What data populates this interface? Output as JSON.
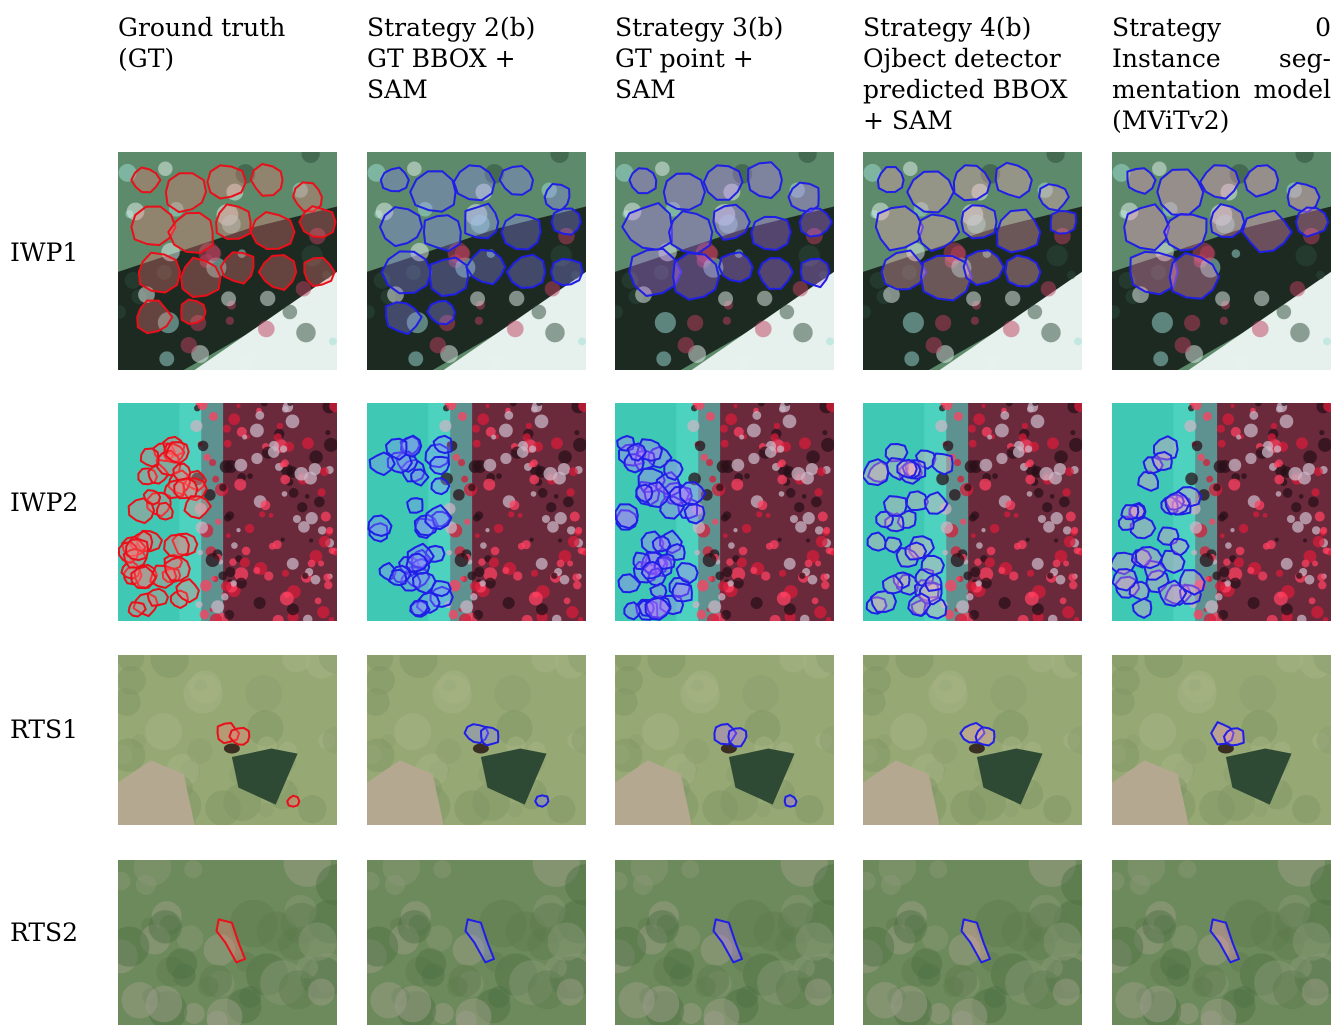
{
  "columns": [
    {
      "id": "gt",
      "lines": [
        "Ground truth",
        "(GT)"
      ],
      "outline": "#e8101a",
      "fill": "rgba(255,120,120,0.32)"
    },
    {
      "id": "s2b",
      "lines": [
        "Strategy 2(b)",
        "GT BBOX +",
        "SAM"
      ],
      "outline": "#1f1fe6",
      "fill": "rgba(150,140,255,0.32)"
    },
    {
      "id": "s3b",
      "lines": [
        "Strategy 3(b)",
        "GT point +",
        "SAM"
      ],
      "outline": "#1f1fe6",
      "fill": "rgba(190,120,255,0.35)"
    },
    {
      "id": "s4b",
      "lines": [
        "Strategy 4(b)",
        "Ojbect detector",
        "predicted BBOX",
        "+ SAM"
      ],
      "outline": "#1f1fe6",
      "fill": "rgba(255,170,190,0.35)"
    },
    {
      "id": "s0",
      "lines": [
        [
          "Strategy",
          "0"
        ],
        [
          "Instance",
          "seg-"
        ],
        [
          "mentation",
          "model"
        ],
        "(MViTv2)"
      ],
      "outline": "#1f1fe6",
      "fill": "rgba(255,150,200,0.35)"
    }
  ],
  "rows": [
    {
      "id": "iwp1",
      "label": "IWP1",
      "scene": "iwp1"
    },
    {
      "id": "iwp2",
      "label": "IWP2",
      "scene": "iwp2"
    },
    {
      "id": "rts1",
      "label": "RTS1",
      "scene": "rts1"
    },
    {
      "id": "rts2",
      "label": "RTS2",
      "scene": "rts2"
    }
  ]
}
